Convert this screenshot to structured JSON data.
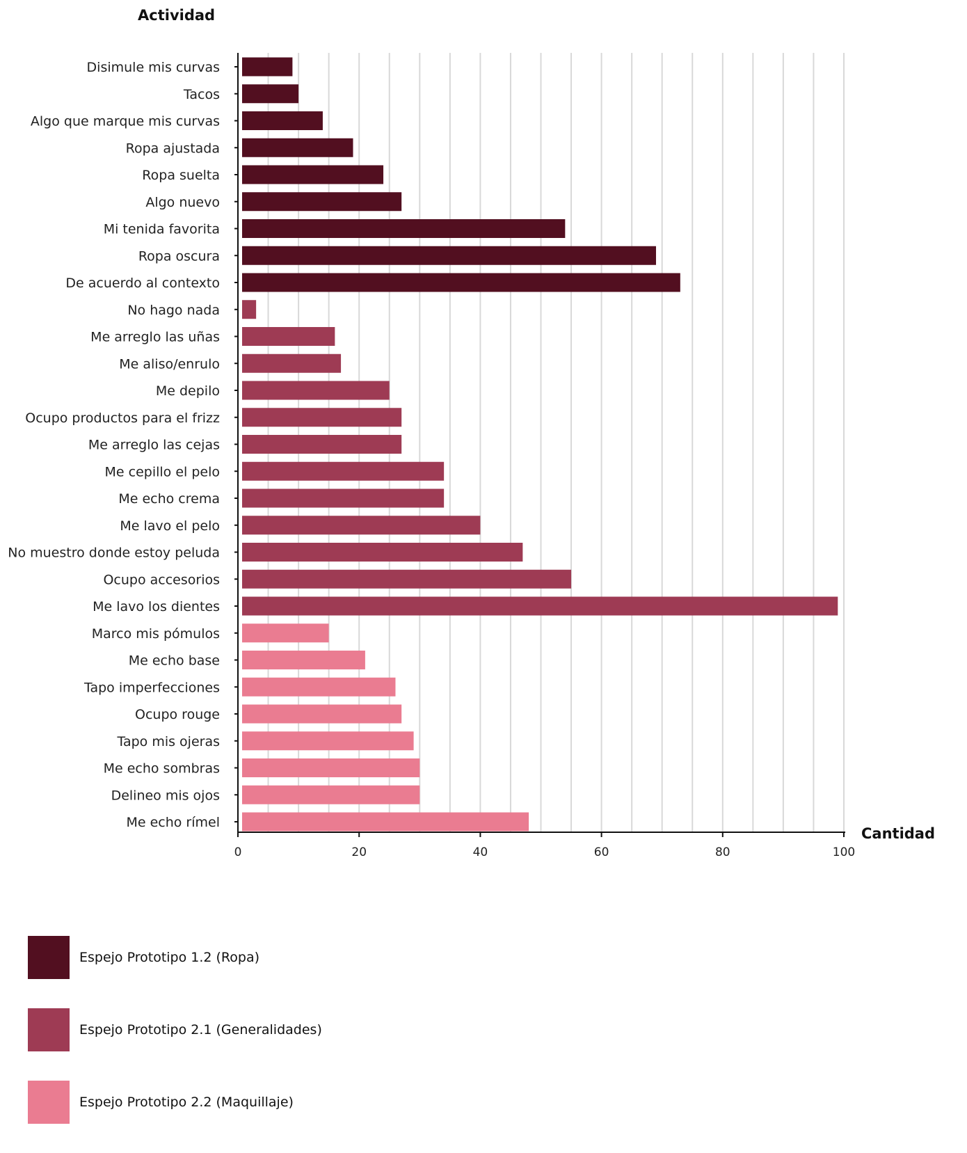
{
  "chart_data": {
    "type": "bar",
    "orientation": "horizontal",
    "ylabel": "Actividad",
    "xlabel": "Cantidad",
    "xlim": [
      0,
      100
    ],
    "xticks": [
      0,
      20,
      40,
      60,
      80,
      100
    ],
    "grid": "vertical every 5",
    "legend_position": "bottom-left",
    "categories": [
      "Disimule mis curvas",
      "Tacos",
      "Algo que marque mis curvas",
      "Ropa ajustada",
      "Ropa suelta",
      "Algo nuevo",
      "Mi tenida favorita",
      "Ropa oscura",
      "De acuerdo al contexto",
      "No hago nada",
      "Me arreglo las uñas",
      "Me aliso/enrulo",
      "Me depilo",
      "Ocupo productos para el frizz",
      "Me arreglo las cejas",
      "Me cepillo el pelo",
      "Me echo crema",
      "Me lavo el pelo",
      "No muestro donde estoy peluda",
      "Ocupo accesorios",
      "Me lavo los dientes",
      "Marco mis pómulos",
      "Me echo base",
      "Tapo imperfecciones",
      "Ocupo rouge",
      "Tapo mis ojeras",
      "Me echo sombras",
      "Delineo mis ojos",
      "Me echo rímel"
    ],
    "values": [
      9,
      10,
      14,
      19,
      24,
      27,
      54,
      69,
      73,
      3,
      16,
      17,
      25,
      27,
      27,
      34,
      34,
      40,
      47,
      55,
      99,
      15,
      21,
      26,
      27,
      29,
      30,
      30,
      48
    ],
    "series_index": [
      0,
      0,
      0,
      0,
      0,
      0,
      0,
      0,
      0,
      1,
      1,
      1,
      1,
      1,
      1,
      1,
      1,
      1,
      1,
      1,
      1,
      2,
      2,
      2,
      2,
      2,
      2,
      2,
      2
    ],
    "series": [
      {
        "name": "Espejo Prototipo 1.2 (Ropa)",
        "color": "#520f20"
      },
      {
        "name": "Espejo Prototipo 2.1 (Generalidades)",
        "color": "#9e3b54"
      },
      {
        "name": "Espejo Prototipo 2.2 (Maquillaje)",
        "color": "#ea7c91"
      }
    ]
  }
}
